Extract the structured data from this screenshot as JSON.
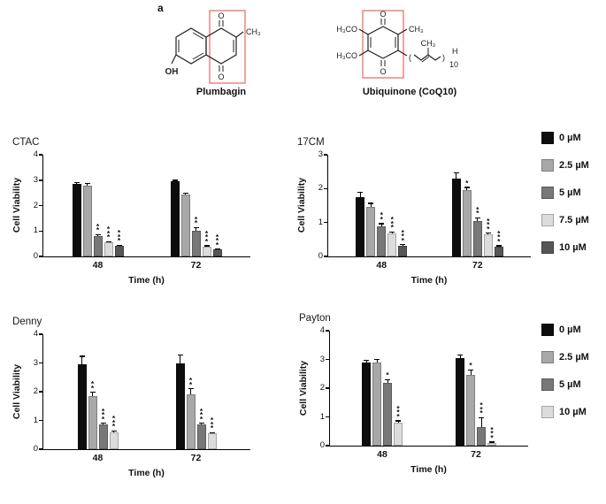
{
  "figure": {
    "panel_label": "a",
    "structures": {
      "plumbagin": {
        "name": "Plumbagin",
        "labels": {
          "o_top": "O",
          "o_bottom": "O",
          "oh": "OH",
          "ch3": "CH₃"
        }
      },
      "ubiquinone": {
        "name": "Ubiquinone  (CoQ10)",
        "labels": {
          "o_top": "O",
          "o_bottom": "O",
          "h3co_top": "H₃CO",
          "h3co_bottom": "H₃CO",
          "ch3_ring": "CH₃",
          "ch3_chain": "CH₃",
          "h_end": "H",
          "repeat": "10"
        }
      }
    }
  },
  "legends": [
    {
      "name": "legend-top",
      "items": [
        {
          "label": "0 µM",
          "color": "#0d0d0d"
        },
        {
          "label": "2.5 µM",
          "color": "#a8a8a8"
        },
        {
          "label": "5 µM",
          "color": "#787878"
        },
        {
          "label": "7.5 µM",
          "color": "#dcdcdc"
        },
        {
          "label": "10 µM",
          "color": "#565656"
        }
      ]
    },
    {
      "name": "legend-bottom",
      "items": [
        {
          "label": "0 µM",
          "color": "#0d0d0d"
        },
        {
          "label": "2.5 µM",
          "color": "#a8a8a8"
        },
        {
          "label": "5 µM",
          "color": "#787878"
        },
        {
          "label": "10 µM",
          "color": "#dcdcdc"
        }
      ]
    }
  ],
  "chart_data": [
    {
      "type": "bar",
      "title": "CTAC",
      "ylabel": "Cell Viability",
      "xlabel": "Time (h)",
      "ylim": [
        0,
        4
      ],
      "yticks": [
        0,
        1,
        2,
        3,
        4
      ],
      "categories": [
        "48",
        "72"
      ],
      "series": [
        {
          "name": "0 µM",
          "color": "#0d0d0d",
          "values": [
            2.85,
            2.95
          ],
          "errors": [
            0.08,
            0.06
          ],
          "sig": [
            "",
            ""
          ]
        },
        {
          "name": "2.5 µM",
          "color": "#a8a8a8",
          "values": [
            2.8,
            2.45
          ],
          "errors": [
            0.08,
            0.05
          ],
          "sig": [
            "",
            ""
          ]
        },
        {
          "name": "5 µM",
          "color": "#787878",
          "values": [
            0.8,
            1.0
          ],
          "errors": [
            0.08,
            0.15
          ],
          "sig": [
            "**",
            "**"
          ]
        },
        {
          "name": "7.5 µM",
          "color": "#dcdcdc",
          "values": [
            0.55,
            0.38
          ],
          "errors": [
            0.05,
            0.06
          ],
          "sig": [
            "***",
            "***"
          ]
        },
        {
          "name": "10 µM",
          "color": "#565656",
          "values": [
            0.42,
            0.27
          ],
          "errors": [
            0.04,
            0.04
          ],
          "sig": [
            "***",
            "***"
          ]
        }
      ]
    },
    {
      "type": "bar",
      "title": "17CM",
      "ylabel": "Cell Viability",
      "xlabel": "Time (h)",
      "ylim": [
        0,
        3
      ],
      "yticks": [
        0,
        1,
        2,
        3
      ],
      "categories": [
        "48",
        "72"
      ],
      "series": [
        {
          "name": "0 µM",
          "color": "#0d0d0d",
          "values": [
            1.75,
            2.3
          ],
          "errors": [
            0.15,
            0.18
          ],
          "sig": [
            "",
            ""
          ]
        },
        {
          "name": "2.5 µM",
          "color": "#a8a8a8",
          "values": [
            1.45,
            1.95
          ],
          "errors": [
            0.13,
            0.1
          ],
          "sig": [
            "",
            "*"
          ]
        },
        {
          "name": "5 µM",
          "color": "#787878",
          "values": [
            0.9,
            1.05
          ],
          "errors": [
            0.08,
            0.1
          ],
          "sig": [
            "**",
            "**"
          ]
        },
        {
          "name": "7.5 µM",
          "color": "#dcdcdc",
          "values": [
            0.68,
            0.65
          ],
          "errors": [
            0.06,
            0.05
          ],
          "sig": [
            "***",
            "***"
          ]
        },
        {
          "name": "10 µM",
          "color": "#565656",
          "values": [
            0.32,
            0.3
          ],
          "errors": [
            0.04,
            0.03
          ],
          "sig": [
            "***",
            "***"
          ]
        }
      ]
    },
    {
      "type": "bar",
      "title": "Denny",
      "ylabel": "Cell Viability",
      "xlabel": "Time (h)",
      "ylim": [
        0,
        4
      ],
      "yticks": [
        0,
        1,
        2,
        3,
        4
      ],
      "categories": [
        "48",
        "72"
      ],
      "series": [
        {
          "name": "0 µM",
          "color": "#0d0d0d",
          "values": [
            2.95,
            3.0
          ],
          "errors": [
            0.3,
            0.3
          ],
          "sig": [
            "",
            ""
          ]
        },
        {
          "name": "2.5 µM",
          "color": "#a8a8a8",
          "values": [
            1.85,
            1.9
          ],
          "errors": [
            0.15,
            0.22
          ],
          "sig": [
            "**",
            "**"
          ]
        },
        {
          "name": "5 µM",
          "color": "#787878",
          "values": [
            0.85,
            0.85
          ],
          "errors": [
            0.07,
            0.07
          ],
          "sig": [
            "***",
            "***"
          ]
        },
        {
          "name": "10 µM",
          "color": "#dcdcdc",
          "values": [
            0.6,
            0.55
          ],
          "errors": [
            0.05,
            0.04
          ],
          "sig": [
            "***",
            "***"
          ]
        }
      ]
    },
    {
      "type": "bar",
      "title": "Payton",
      "ylabel": "Cell Viability",
      "xlabel": "Time (h)",
      "ylim": [
        0,
        4
      ],
      "yticks": [
        0,
        1,
        2,
        3,
        4
      ],
      "categories": [
        "48",
        "72"
      ],
      "series": [
        {
          "name": "0 µM",
          "color": "#0d0d0d",
          "values": [
            2.9,
            3.05
          ],
          "errors": [
            0.1,
            0.12
          ],
          "sig": [
            "",
            ""
          ]
        },
        {
          "name": "2.5 µM",
          "color": "#a8a8a8",
          "values": [
            2.9,
            2.45
          ],
          "errors": [
            0.12,
            0.2
          ],
          "sig": [
            "",
            "*"
          ]
        },
        {
          "name": "5 µM",
          "color": "#787878",
          "values": [
            2.2,
            0.65
          ],
          "errors": [
            0.12,
            0.35
          ],
          "sig": [
            "*",
            "***"
          ]
        },
        {
          "name": "10 µM",
          "color": "#dcdcdc",
          "values": [
            0.8,
            0.1
          ],
          "errors": [
            0.08,
            0.04
          ],
          "sig": [
            "***",
            "***"
          ]
        }
      ]
    }
  ]
}
